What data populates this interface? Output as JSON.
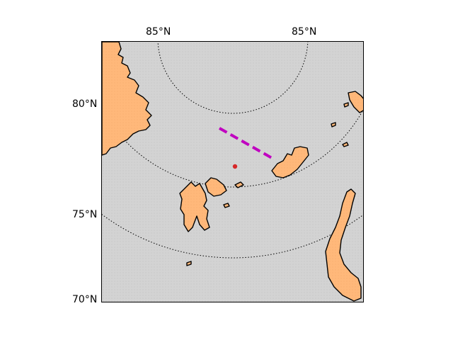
{
  "map": {
    "projection": "north-polar-stereographic",
    "colors": {
      "ocean": "#d3d3d3",
      "land": "#ffb87a",
      "coastline": "#000000",
      "graticule": "#000000",
      "track": "#c000c0",
      "marker": "#d62728"
    },
    "top_labels": [
      "85°N",
      "85°N"
    ],
    "left_labels": [
      "80°N",
      "75°N",
      "70°N"
    ],
    "graticule_latitudes": [
      "85°N",
      "80°N",
      "75°N"
    ],
    "features": [
      {
        "name": "Greenland (northeast)",
        "type": "land"
      },
      {
        "name": "Svalbard",
        "type": "land"
      },
      {
        "name": "Franz Josef Land",
        "type": "land"
      },
      {
        "name": "Novaya Zemlya",
        "type": "land"
      }
    ],
    "track": {
      "style": "dashed",
      "label": ""
    },
    "marker": {
      "style": "dot"
    }
  }
}
